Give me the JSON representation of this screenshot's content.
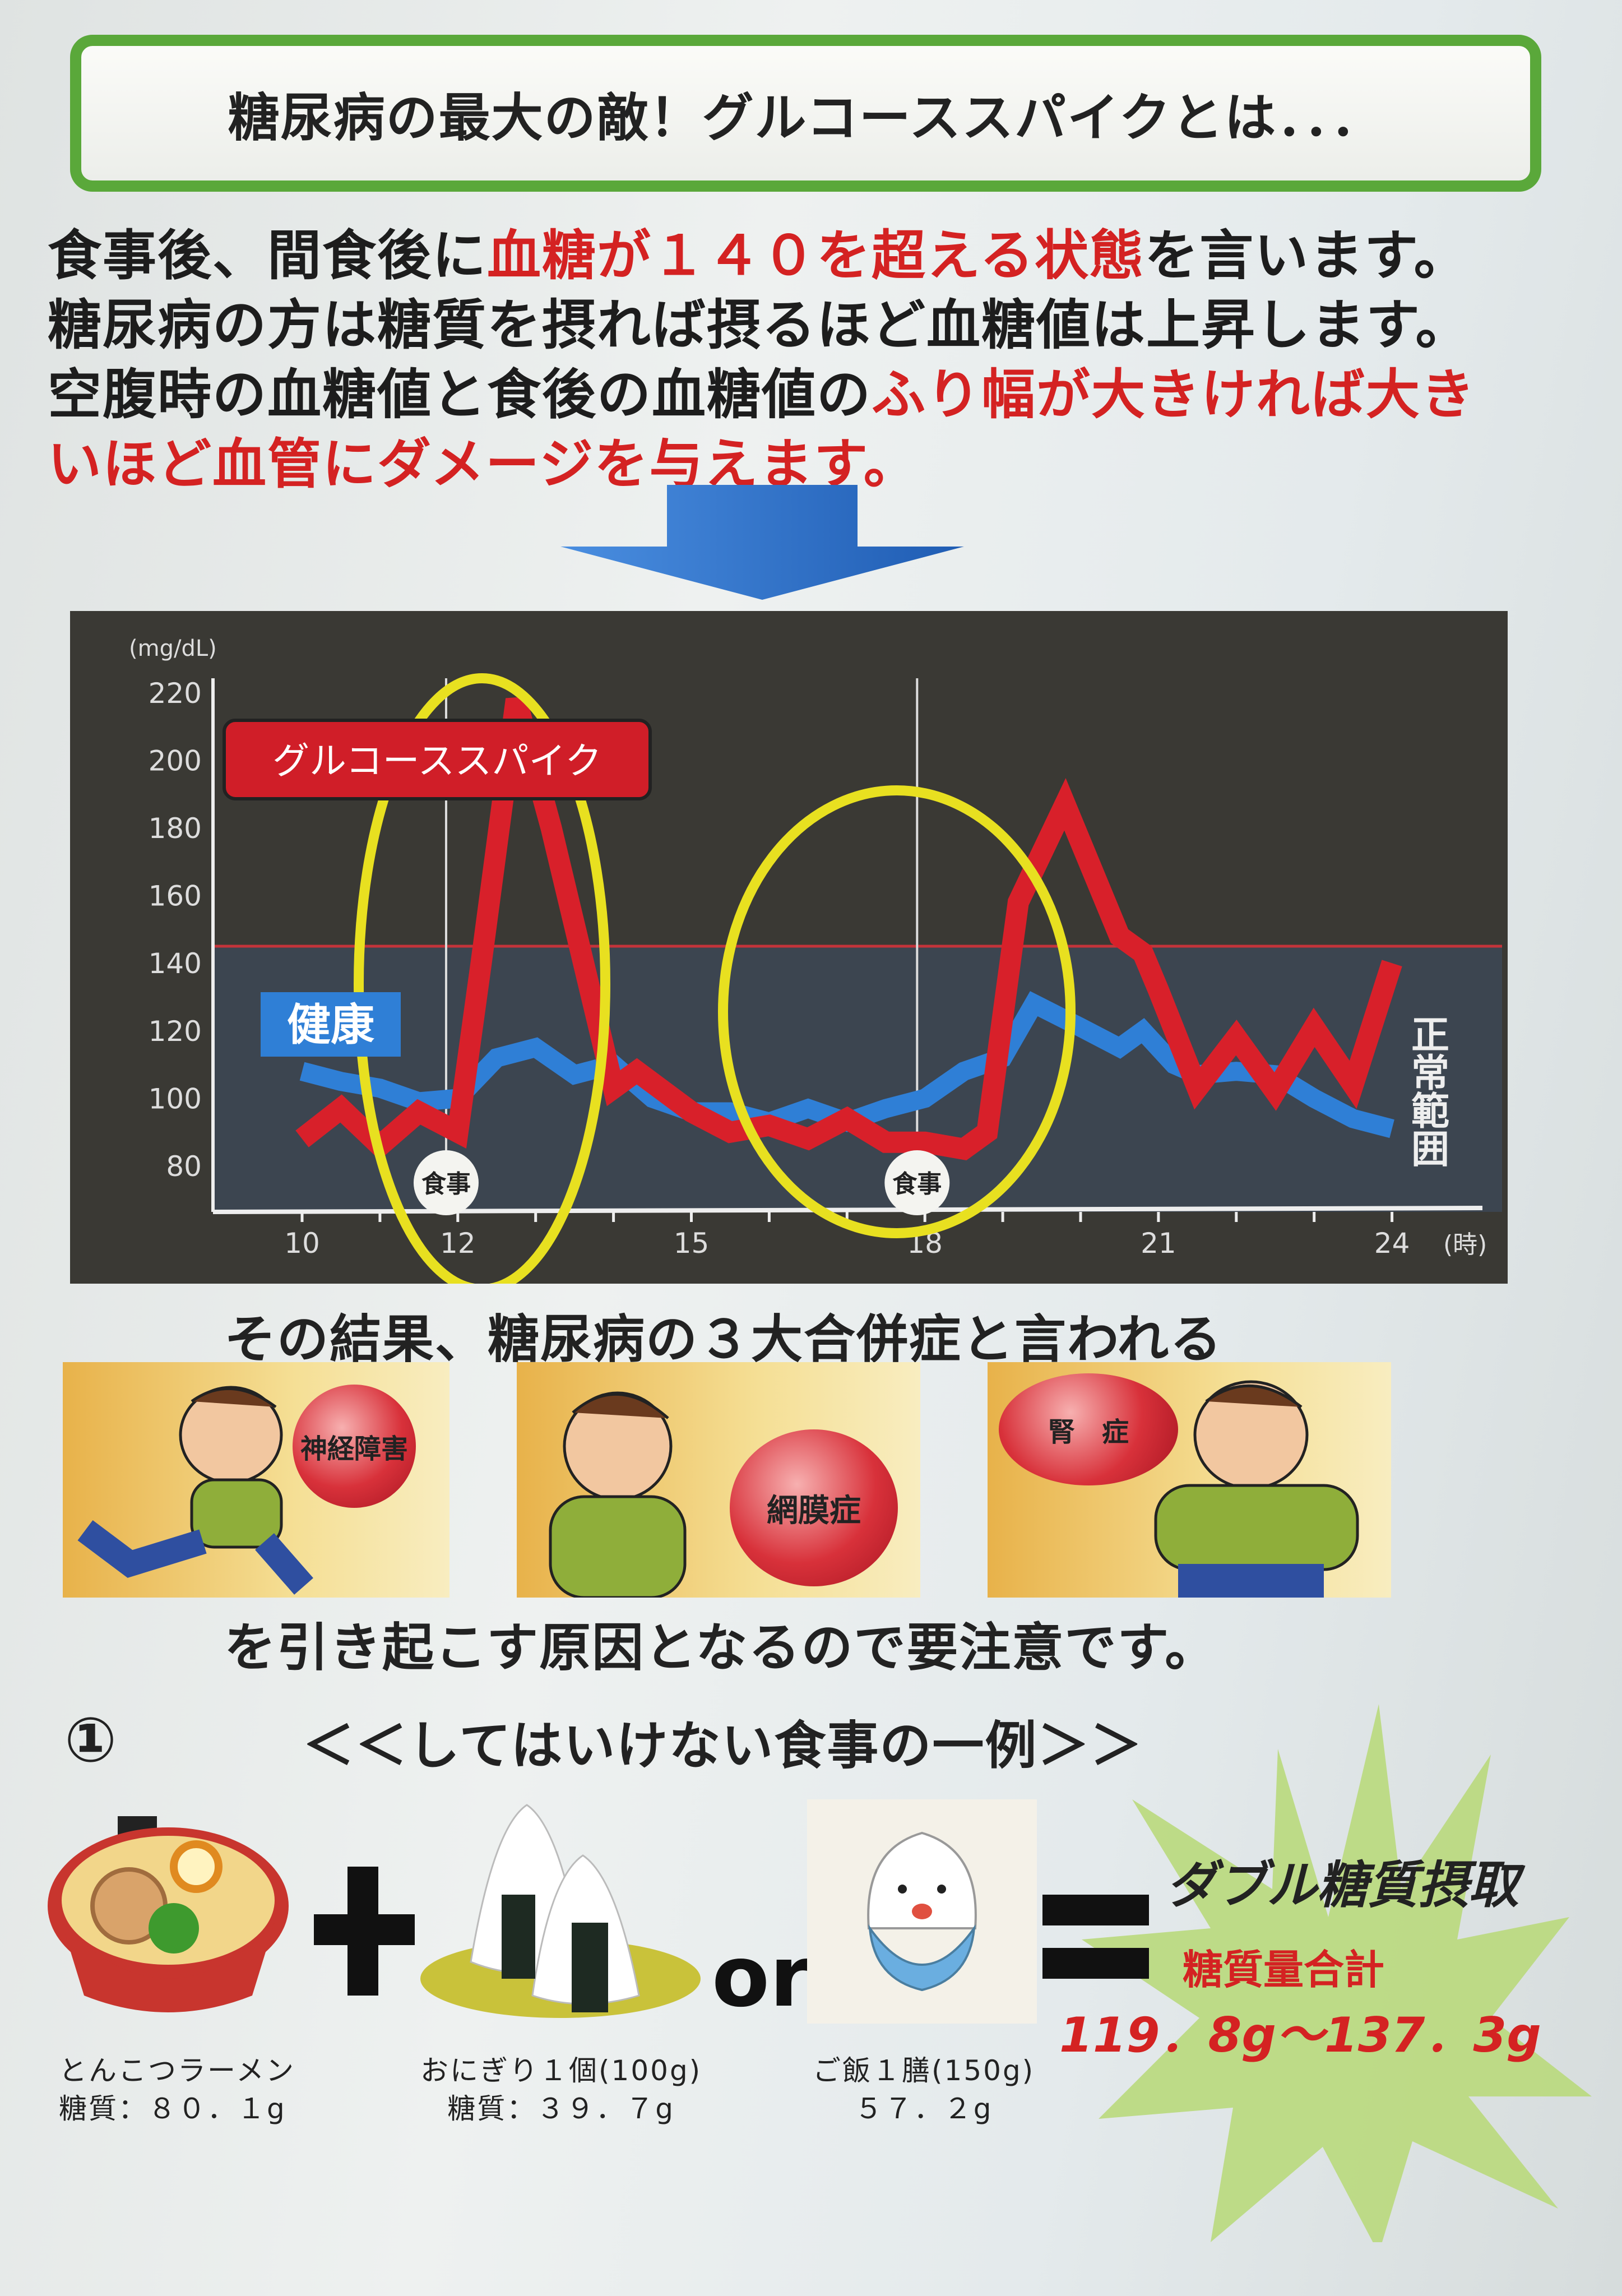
{
  "title": "糖尿病の最大の敵！グルコーススパイクとは．．．",
  "intro": {
    "line1_a": "食事後、間食後に",
    "line1_b": "血糖が１４０を超える状態",
    "line1_c": "を言います。",
    "line2": "糖尿病の方は糖質を摂れば摂るほど血糖値は上昇します。",
    "line3_a": "空腹時の血糖値と食後の血糖値の",
    "line3_b": "ふり幅が大きければ大き",
    "line4": "いほど血管にダメージを与えます。"
  },
  "colors": {
    "accent_red": "#d42222",
    "title_border": "#5aa83a",
    "arrow_blue": "#2d6fc4",
    "spike_line": "#d8202a",
    "healthy_line": "#2f7fd6",
    "highlight_ellipse": "#e8e020",
    "chart_bg": "#3a3934"
  },
  "chart_data": {
    "type": "line",
    "ylabel": "(mg/dL)",
    "xlabel": "(時)",
    "ylim": [
      80,
      220
    ],
    "xlim": [
      10,
      24
    ],
    "yticks": [
      80,
      100,
      120,
      140,
      160,
      180,
      200,
      220
    ],
    "xticks": [
      10,
      12,
      15,
      18,
      21,
      24
    ],
    "threshold": 145,
    "threshold_label": "正常範囲",
    "spike_label": "グルコーススパイク",
    "meal_label": "食事",
    "meals": [
      11.85,
      17.9
    ],
    "series": [
      {
        "name": "健康",
        "color": "#2f7fd6",
        "x": [
          10,
          10.5,
          11,
          11.5,
          12,
          12.5,
          13,
          13.5,
          14,
          14.5,
          15,
          15.5,
          16,
          16.5,
          17,
          17.5,
          18,
          18.5,
          19,
          19.4,
          20,
          20.5,
          20.8,
          21.2,
          21.5,
          22,
          22.5,
          23,
          23.5,
          24
        ],
        "y": [
          108,
          105,
          103,
          99,
          100,
          112,
          115,
          107,
          110,
          100,
          96,
          96,
          93,
          97,
          93,
          97,
          100,
          108,
          112,
          128,
          121,
          115,
          120,
          110,
          107,
          108,
          107,
          100,
          94,
          91
        ]
      },
      {
        "name": "グルコーススパイク",
        "color": "#d8202a",
        "x": [
          10,
          10.5,
          11,
          11.5,
          12,
          12.3,
          12.75,
          13.2,
          14,
          14.3,
          15,
          15.5,
          16,
          16.5,
          17,
          17.5,
          18,
          18.5,
          18.8,
          19.2,
          19.8,
          20.5,
          20.8,
          21,
          21.5,
          22,
          22.5,
          23,
          23.5,
          24
        ],
        "y": [
          88,
          97,
          86,
          96,
          90,
          140,
          218,
          180,
          103,
          108,
          96,
          90,
          92,
          88,
          94,
          87,
          87,
          85,
          90,
          158,
          187,
          148,
          143,
          132,
          103,
          118,
          102,
          121,
          104,
          140
        ]
      }
    ],
    "highlights": [
      "spike-1",
      "spike-2"
    ]
  },
  "complications": {
    "heading": "その結果、糖尿病の３大合併症と言われる",
    "items": [
      {
        "label": "神経障害"
      },
      {
        "label": "網膜症"
      },
      {
        "label": "腎　症"
      }
    ],
    "footer": "を引き起こす原因となるので要注意です。"
  },
  "example": {
    "number": "①",
    "heading": "＜＜してはいけない食事の一例＞＞",
    "or_label": "or",
    "foods": [
      {
        "name": "とんこつラーメン",
        "carbs": "糖質：８０．１g",
        "icon": "ramen-icon"
      },
      {
        "name": "おにぎり１個(100g)",
        "carbs": "糖質：３９．７g",
        "icon": "onigiri-icon"
      },
      {
        "name": "ご飯１膳(150g)",
        "carbs": "５７．２g",
        "icon": "rice-bowl-icon"
      }
    ],
    "result_title": "ダブル糖質摂取",
    "total_label": "糖質量合計",
    "total_value": "119．8g～137．3g"
  }
}
